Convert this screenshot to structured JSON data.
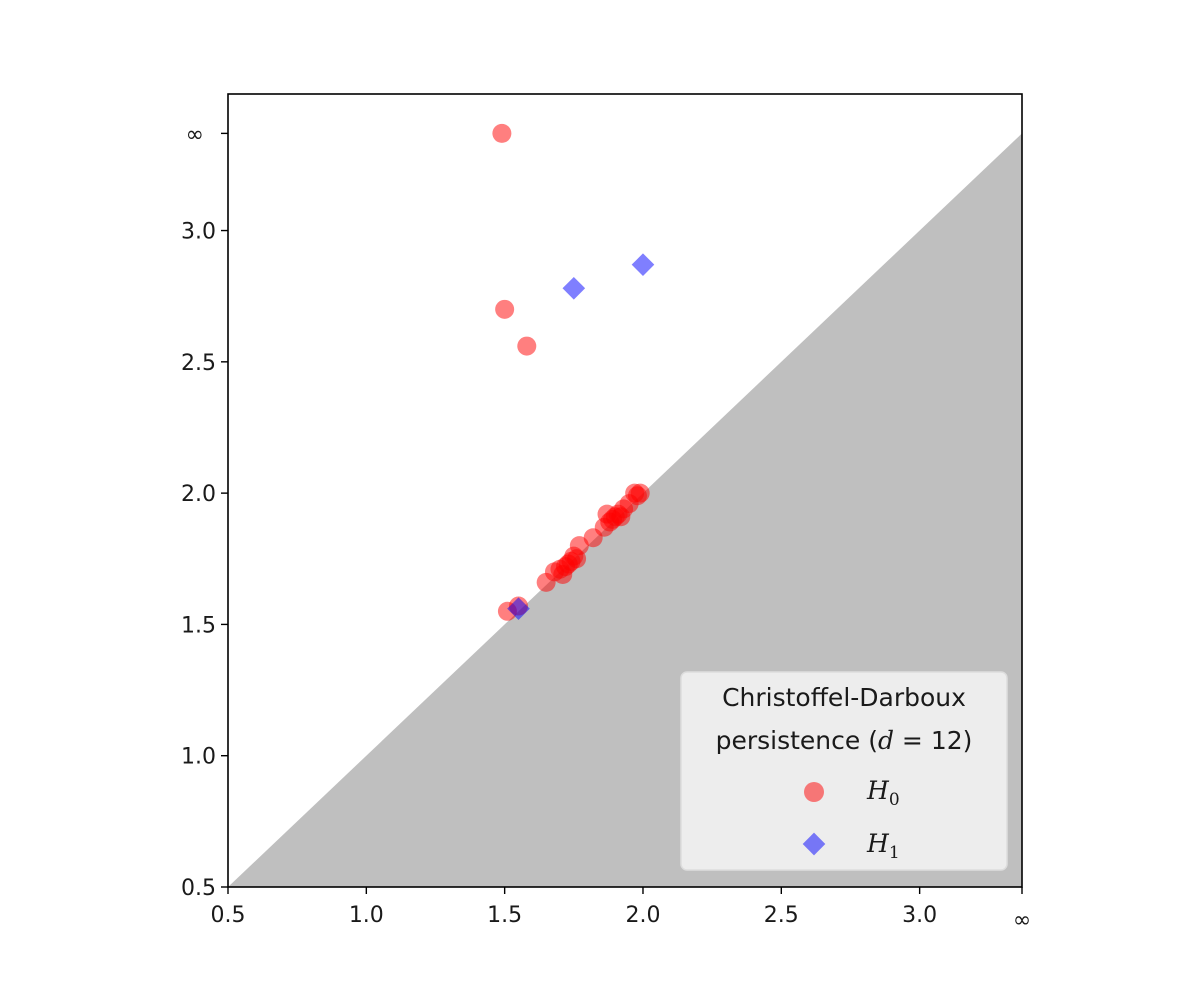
{
  "chart_data": {
    "type": "scatter",
    "title": "",
    "xlabel": "",
    "ylabel": "",
    "xlim": [
      0.5,
      3.37
    ],
    "ylim": [
      0.5,
      3.52
    ],
    "x_ticks": [
      {
        "value": 0.5,
        "label": "0.5"
      },
      {
        "value": 1.0,
        "label": "1.0"
      },
      {
        "value": 1.5,
        "label": "1.5"
      },
      {
        "value": 2.0,
        "label": "2.0"
      },
      {
        "value": 2.5,
        "label": "2.5"
      },
      {
        "value": 3.0,
        "label": "3.0"
      },
      {
        "value": 3.37,
        "label": "∞"
      }
    ],
    "y_ticks": [
      {
        "value": 0.5,
        "label": "0.5"
      },
      {
        "value": 1.0,
        "label": "1.0"
      },
      {
        "value": 1.5,
        "label": "1.5"
      },
      {
        "value": 2.0,
        "label": "2.0"
      },
      {
        "value": 2.5,
        "label": "2.5"
      },
      {
        "value": 3.0,
        "label": "3.0"
      },
      {
        "value": 3.37,
        "label": "∞"
      }
    ],
    "diagonal_shaded": true,
    "shade_color": "#bfbfbf",
    "infinity_value": 3.37,
    "series": [
      {
        "name": "H0",
        "marker": "circle",
        "color": "#ff0000",
        "alpha": 0.5,
        "points": [
          [
            1.49,
            3.37
          ],
          [
            1.5,
            2.7
          ],
          [
            1.58,
            2.56
          ],
          [
            1.51,
            1.55
          ],
          [
            1.55,
            1.57
          ],
          [
            1.65,
            1.66
          ],
          [
            1.68,
            1.7
          ],
          [
            1.7,
            1.71
          ],
          [
            1.71,
            1.69
          ],
          [
            1.72,
            1.72
          ],
          [
            1.73,
            1.73
          ],
          [
            1.74,
            1.74
          ],
          [
            1.75,
            1.76
          ],
          [
            1.76,
            1.75
          ],
          [
            1.77,
            1.8
          ],
          [
            1.82,
            1.83
          ],
          [
            1.86,
            1.87
          ],
          [
            1.87,
            1.92
          ],
          [
            1.88,
            1.89
          ],
          [
            1.89,
            1.9
          ],
          [
            1.9,
            1.91
          ],
          [
            1.91,
            1.92
          ],
          [
            1.92,
            1.91
          ],
          [
            1.93,
            1.94
          ],
          [
            1.95,
            1.96
          ],
          [
            1.97,
            2.0
          ],
          [
            1.98,
            1.99
          ],
          [
            1.99,
            2.0
          ]
        ]
      },
      {
        "name": "H1",
        "marker": "diamond",
        "color": "#0000ff",
        "alpha": 0.5,
        "points": [
          [
            1.75,
            2.78
          ],
          [
            2.0,
            2.87
          ],
          [
            1.55,
            1.56
          ]
        ]
      }
    ],
    "legend": {
      "position": "lower-right",
      "title_lines": [
        "Christoffel-Darboux",
        "persistence ("
      ],
      "title_var": "d",
      "title_value": "12",
      "title_suffix": ")",
      "entries": [
        {
          "symbol": "H",
          "subscript": "0",
          "marker": "circle",
          "color": "#ff0000"
        },
        {
          "symbol": "H",
          "subscript": "1",
          "marker": "diamond",
          "color": "#0000ff"
        }
      ]
    }
  }
}
